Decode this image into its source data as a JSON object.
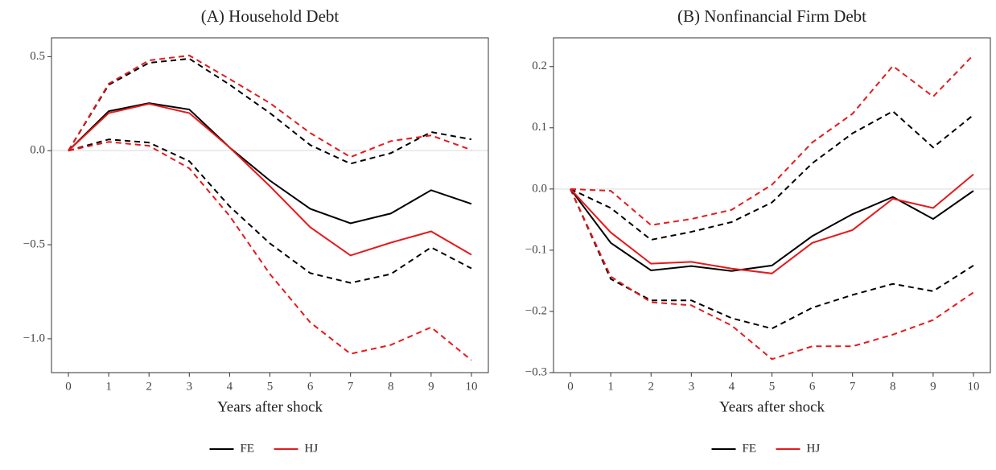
{
  "chart_data": [
    {
      "type": "line",
      "title": "(A) Household Debt",
      "x_label": "Years after shock",
      "x": [
        0,
        1,
        2,
        3,
        4,
        5,
        6,
        7,
        8,
        9,
        10
      ],
      "xlim": [
        -0.42,
        10.42
      ],
      "xticks": [
        0,
        1,
        2,
        3,
        4,
        5,
        6,
        7,
        8,
        9,
        10
      ],
      "ylim": [
        -1.18,
        0.6
      ],
      "yticks": [
        {
          "value": -1.0,
          "label": "−1.0"
        },
        {
          "value": -0.5,
          "label": "−0.5"
        },
        {
          "value": 0,
          "label": "0.0"
        },
        0.5
      ],
      "zero_line": true,
      "legend": "bottom",
      "series": [
        {
          "name": "FE",
          "color": "#000000",
          "values": [
            0,
            0.21,
            0.253,
            0.219,
            0.017,
            -0.159,
            -0.309,
            -0.386,
            -0.334,
            -0.21,
            -0.283
          ],
          "upper": [
            0,
            0.35,
            0.467,
            0.489,
            0.351,
            0.2,
            0.03,
            -0.069,
            -0.013,
            0.099,
            0.06
          ],
          "lower": [
            0,
            0.06,
            0.043,
            -0.056,
            -0.296,
            -0.493,
            -0.651,
            -0.703,
            -0.656,
            -0.514,
            -0.626
          ]
        },
        {
          "name": "HJ",
          "color": "#e41a1c",
          "values": [
            0,
            0.2,
            0.249,
            0.2,
            0.017,
            -0.189,
            -0.407,
            -0.557,
            -0.489,
            -0.429,
            -0.553
          ],
          "upper": [
            0,
            0.356,
            0.48,
            0.506,
            0.381,
            0.253,
            0.094,
            -0.034,
            0.051,
            0.081,
            0.004
          ],
          "lower": [
            0,
            0.047,
            0.026,
            -0.094,
            -0.347,
            -0.656,
            -0.913,
            -1.08,
            -1.033,
            -0.939,
            -1.114
          ]
        }
      ]
    },
    {
      "type": "line",
      "title": "(B) Nonfinancial Firm Debt",
      "x_label": "Years after shock",
      "x": [
        0,
        1,
        2,
        3,
        4,
        5,
        6,
        7,
        8,
        9,
        10
      ],
      "xlim": [
        -0.42,
        10.42
      ],
      "xticks": [
        0,
        1,
        2,
        3,
        4,
        5,
        6,
        7,
        8,
        9,
        10
      ],
      "ylim": [
        -0.3,
        0.247
      ],
      "yticks": [
        {
          "value": -0.3,
          "label": "−0.3"
        },
        {
          "value": -0.2,
          "label": "−0.2"
        },
        {
          "value": -0.1,
          "label": "−0.1"
        },
        {
          "value": 0,
          "label": "0.0"
        },
        0.1,
        0.2
      ],
      "zero_line": true,
      "legend": "bottom",
      "series": [
        {
          "name": "FE",
          "color": "#000000",
          "values": [
            0,
            -0.088,
            -0.133,
            -0.126,
            -0.134,
            -0.125,
            -0.077,
            -0.041,
            -0.013,
            -0.049,
            -0.003
          ],
          "upper": [
            0,
            -0.031,
            -0.083,
            -0.07,
            -0.054,
            -0.022,
            0.042,
            0.091,
            0.127,
            0.068,
            0.121
          ],
          "lower": [
            0,
            -0.147,
            -0.182,
            -0.182,
            -0.211,
            -0.228,
            -0.194,
            -0.173,
            -0.155,
            -0.167,
            -0.125
          ]
        },
        {
          "name": "HJ",
          "color": "#e41a1c",
          "values": [
            0,
            -0.071,
            -0.122,
            -0.119,
            -0.13,
            -0.138,
            -0.088,
            -0.067,
            -0.016,
            -0.031,
            0.024
          ],
          "upper": [
            0,
            -0.003,
            -0.059,
            -0.049,
            -0.034,
            0.007,
            0.076,
            0.123,
            0.201,
            0.151,
            0.219
          ],
          "lower": [
            0,
            -0.143,
            -0.185,
            -0.19,
            -0.223,
            -0.278,
            -0.257,
            -0.257,
            -0.238,
            -0.214,
            -0.169
          ]
        }
      ]
    }
  ]
}
